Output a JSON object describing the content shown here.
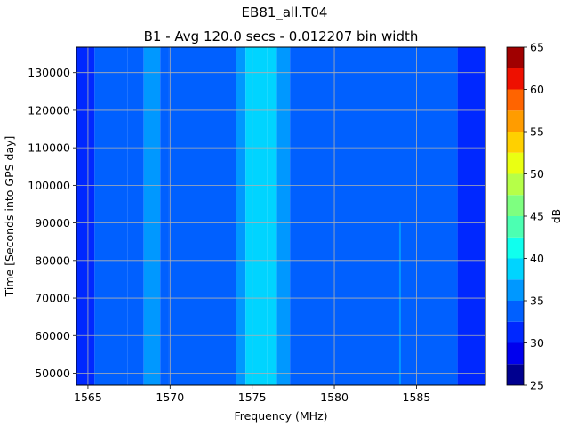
{
  "chart_data": {
    "type": "heatmap",
    "suptitle": "EB81_all.T04",
    "title": "B1 - Avg 120.0 secs - 0.012207 bin width",
    "xlabel": "Frequency (MHz)",
    "ylabel": "Time [Seconds into GPS day]",
    "xlim": [
      1564.3,
      1589.2
    ],
    "ylim": [
      46800,
      136800
    ],
    "x_ticks": [
      1565,
      1570,
      1575,
      1580,
      1585
    ],
    "y_ticks": [
      50000,
      60000,
      70000,
      80000,
      90000,
      100000,
      110000,
      120000,
      130000
    ],
    "grid": true,
    "colorbar": {
      "label": "dB",
      "range": [
        25,
        65
      ],
      "ticks": [
        25,
        30,
        35,
        40,
        45,
        50,
        55,
        60,
        65
      ],
      "levels": [
        25,
        27.5,
        30,
        32.5,
        35,
        37.5,
        40,
        42.5,
        45,
        47.5,
        50,
        52.5,
        55,
        57.5,
        60,
        62.5,
        65
      ],
      "colors": [
        "#00008f",
        "#0000ee",
        "#0028ff",
        "#0060ff",
        "#0098ff",
        "#00d4ff",
        "#10ffee",
        "#4cffb2",
        "#7eff80",
        "#b6ff48",
        "#eaff12",
        "#ffd000",
        "#ff9c00",
        "#ff6400",
        "#ee1000",
        "#a00000"
      ]
    },
    "frequency_bands": [
      {
        "x0": 1564.3,
        "x1": 1565.4,
        "db": 31
      },
      {
        "x0": 1565.4,
        "x1": 1567.4,
        "db": 33
      },
      {
        "x0": 1567.4,
        "x1": 1568.4,
        "db": 34.5
      },
      {
        "x0": 1568.4,
        "x1": 1569.4,
        "db": 35.5
      },
      {
        "x0": 1569.4,
        "x1": 1569.9,
        "db": 34.5
      },
      {
        "x0": 1569.9,
        "x1": 1574.0,
        "db": 33
      },
      {
        "x0": 1574.0,
        "x1": 1574.6,
        "db": 36
      },
      {
        "x0": 1574.6,
        "x1": 1575.9,
        "db": 38.5
      },
      {
        "x0": 1575.9,
        "x1": 1576.5,
        "db": 38
      },
      {
        "x0": 1576.5,
        "x1": 1577.3,
        "db": 36
      },
      {
        "x0": 1577.3,
        "x1": 1587.5,
        "db": 33
      },
      {
        "x0": 1587.5,
        "x1": 1589.2,
        "db": 31
      }
    ],
    "narrowband_signal": {
      "freq": 1584.0,
      "t0": 47000,
      "t1": 90500,
      "db": 36
    }
  }
}
